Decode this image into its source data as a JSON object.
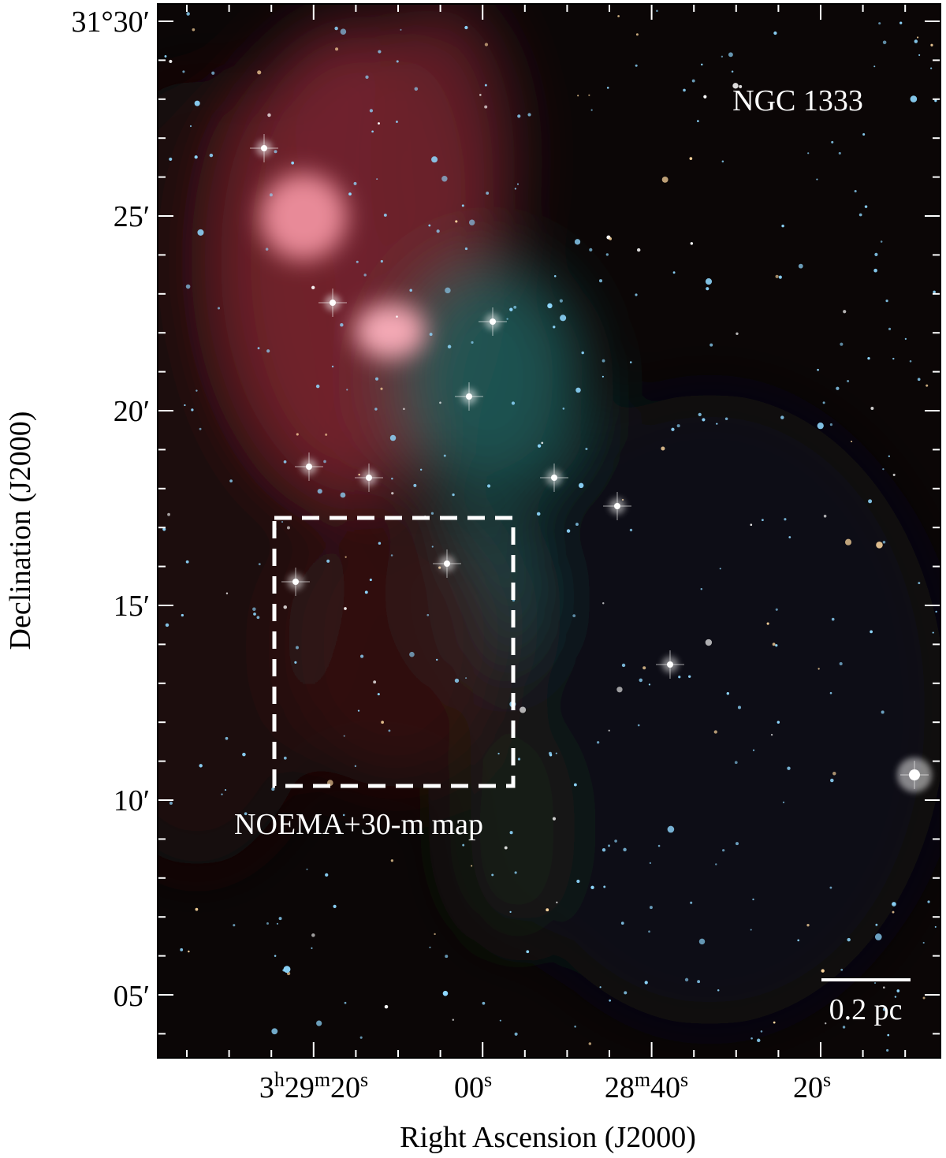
{
  "figure": {
    "label": "NGC 1333",
    "region_label": "NOEMA+30-m map",
    "scale_bar_label": "0.2 pc",
    "x_axis": {
      "title": "Right Ascension (J2000)",
      "tick_labels": [
        [
          "3",
          "h",
          "29",
          "m",
          "20",
          "s"
        ],
        [
          "00",
          "s"
        ],
        [
          "28",
          "m",
          "40",
          "s"
        ],
        [
          "20",
          "s"
        ]
      ]
    },
    "y_axis": {
      "title": "Declination (J2000)",
      "tick_labels": [
        "31°30′",
        "25′",
        "20′",
        "15′",
        "10′",
        "05′"
      ]
    }
  }
}
